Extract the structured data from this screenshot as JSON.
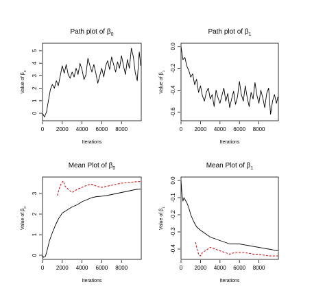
{
  "chart_data": [
    {
      "type": "line",
      "title": "Path plot of β0",
      "title_main": "Path plot of β",
      "title_sub": "0",
      "xlabel": "Iterations",
      "ylabel": "Value of β0",
      "ylabel_main": "Value of β",
      "ylabel_sub": "0",
      "xlim": [
        0,
        10000
      ],
      "ylim": [
        -0.6,
        5.6
      ],
      "xticks": [
        0,
        2000,
        4000,
        6000,
        8000
      ],
      "yticks": [
        0,
        1,
        2,
        3,
        4,
        5
      ],
      "grid": false,
      "series": [
        {
          "color": "#000000",
          "style": "solid",
          "x": [
            0,
            200,
            400,
            600,
            800,
            1000,
            1200,
            1400,
            1600,
            1800,
            2000,
            2200,
            2400,
            2600,
            2800,
            3000,
            3200,
            3400,
            3600,
            3800,
            4000,
            4200,
            4400,
            4600,
            4800,
            5000,
            5200,
            5400,
            5600,
            5800,
            6000,
            6200,
            6400,
            6600,
            6800,
            7000,
            7200,
            7400,
            7600,
            7800,
            8000,
            8200,
            8400,
            8600,
            8800,
            9000,
            9200,
            9400,
            9600,
            9800,
            9950
          ],
          "values": [
            0.0,
            -0.3,
            0.1,
            1.0,
            1.9,
            2.3,
            2.0,
            2.6,
            2.2,
            3.0,
            3.8,
            3.2,
            3.9,
            3.1,
            2.8,
            3.3,
            2.9,
            3.6,
            3.1,
            4.0,
            3.5,
            2.7,
            3.1,
            4.4,
            3.8,
            3.3,
            3.9,
            3.2,
            2.4,
            3.0,
            3.6,
            2.9,
            3.8,
            4.2,
            3.5,
            4.5,
            3.9,
            3.3,
            4.1,
            3.6,
            4.6,
            3.8,
            3.1,
            4.3,
            3.6,
            5.2,
            4.5,
            3.2,
            2.6,
            4.9,
            3.8
          ]
        }
      ]
    },
    {
      "type": "line",
      "title": "Path plot of β1",
      "title_main": "Path plot of β",
      "title_sub": "1",
      "xlabel": "Iterations",
      "ylabel": "Value of β1",
      "ylabel_main": "Value of β",
      "ylabel_sub": "1",
      "xlim": [
        0,
        10000
      ],
      "ylim": [
        -0.68,
        0.03
      ],
      "xticks": [
        0,
        2000,
        4000,
        6000,
        8000
      ],
      "yticks": [
        0.0,
        -0.2,
        -0.4,
        -0.6
      ],
      "ytick_labels": [
        "0.0",
        "-0.2",
        "-0.4",
        "-0.6"
      ],
      "grid": false,
      "series": [
        {
          "color": "#000000",
          "style": "solid",
          "x": [
            0,
            200,
            400,
            600,
            800,
            1000,
            1200,
            1400,
            1600,
            1800,
            2000,
            2200,
            2400,
            2600,
            2800,
            3000,
            3200,
            3400,
            3600,
            3800,
            4000,
            4200,
            4400,
            4600,
            4800,
            5000,
            5200,
            5400,
            5600,
            5800,
            6000,
            6200,
            6400,
            6600,
            6800,
            7000,
            7200,
            7400,
            7600,
            7800,
            8000,
            8200,
            8400,
            8600,
            8800,
            9000,
            9200,
            9400,
            9600,
            9800,
            9950
          ],
          "values": [
            0.0,
            -0.12,
            -0.1,
            -0.18,
            -0.22,
            -0.28,
            -0.25,
            -0.35,
            -0.3,
            -0.42,
            -0.36,
            -0.45,
            -0.5,
            -0.42,
            -0.38,
            -0.48,
            -0.44,
            -0.55,
            -0.4,
            -0.47,
            -0.52,
            -0.45,
            -0.38,
            -0.5,
            -0.43,
            -0.56,
            -0.48,
            -0.41,
            -0.53,
            -0.46,
            -0.32,
            -0.44,
            -0.5,
            -0.36,
            -0.47,
            -0.55,
            -0.42,
            -0.48,
            -0.33,
            -0.45,
            -0.52,
            -0.4,
            -0.47,
            -0.56,
            -0.43,
            -0.38,
            -0.62,
            -0.5,
            -0.44,
            -0.52,
            -0.46
          ]
        }
      ]
    },
    {
      "type": "line",
      "title": "Mean Plot of β0",
      "title_main": "Mean Plot of β",
      "title_sub": "0",
      "xlabel": "Iterations",
      "ylabel": "Value of β0",
      "ylabel_main": "Value of β",
      "ylabel_sub": "0",
      "xlim": [
        0,
        10000
      ],
      "ylim": [
        -0.2,
        3.8
      ],
      "xticks": [
        0,
        2000,
        4000,
        6000,
        8000
      ],
      "yticks": [
        0,
        1,
        2,
        3
      ],
      "grid": false,
      "series": [
        {
          "color": "#000000",
          "style": "solid",
          "x": [
            0,
            100,
            300,
            500,
            700,
            1000,
            1300,
            1600,
            2000,
            2500,
            3000,
            3500,
            4000,
            4500,
            5000,
            5500,
            6000,
            6500,
            7000,
            7500,
            8000,
            8500,
            9000,
            9500,
            9950
          ],
          "values": [
            0.0,
            -0.1,
            -0.05,
            0.3,
            0.7,
            1.1,
            1.45,
            1.75,
            2.05,
            2.2,
            2.35,
            2.45,
            2.6,
            2.7,
            2.8,
            2.85,
            2.87,
            2.9,
            2.95,
            3.0,
            3.05,
            3.1,
            3.15,
            3.2,
            3.22
          ]
        },
        {
          "color": "#d00000",
          "style": "dashed",
          "x": [
            1500,
            1700,
            1900,
            2100,
            2300,
            2600,
            3000,
            3500,
            4000,
            4500,
            5000,
            5500,
            6000,
            6500,
            7000,
            7500,
            8000,
            8500,
            9000,
            9500,
            9950
          ],
          "values": [
            2.9,
            3.25,
            3.5,
            3.6,
            3.35,
            3.2,
            3.05,
            3.2,
            3.3,
            3.4,
            3.45,
            3.35,
            3.3,
            3.35,
            3.4,
            3.45,
            3.5,
            3.52,
            3.55,
            3.57,
            3.58
          ]
        }
      ]
    },
    {
      "type": "line",
      "title": "Mean Plot of β1",
      "title_main": "Mean Plot of β",
      "title_sub": "1",
      "xlabel": "Iterations",
      "ylabel": "Value of β1",
      "ylabel_main": "Value of β",
      "ylabel_sub": "1",
      "xlim": [
        0,
        10000
      ],
      "ylim": [
        -0.46,
        0.02
      ],
      "xticks": [
        0,
        2000,
        4000,
        6000,
        8000
      ],
      "yticks": [
        0.0,
        -0.1,
        -0.2,
        -0.3,
        -0.4
      ],
      "ytick_labels": [
        "0.0",
        "-0.1",
        "-0.2",
        "-0.3",
        "-0.4"
      ],
      "grid": false,
      "series": [
        {
          "color": "#000000",
          "style": "solid",
          "x": [
            0,
            100,
            200,
            300,
            400,
            600,
            800,
            1000,
            1300,
            1600,
            2000,
            2500,
            3000,
            3500,
            4000,
            4500,
            5000,
            5500,
            6000,
            6500,
            7000,
            7500,
            8000,
            8500,
            9000,
            9500,
            9950
          ],
          "values": [
            0.0,
            -0.08,
            -0.12,
            -0.1,
            -0.11,
            -0.13,
            -0.16,
            -0.2,
            -0.24,
            -0.27,
            -0.29,
            -0.31,
            -0.33,
            -0.34,
            -0.35,
            -0.36,
            -0.37,
            -0.37,
            -0.37,
            -0.375,
            -0.38,
            -0.385,
            -0.39,
            -0.395,
            -0.4,
            -0.405,
            -0.41
          ]
        },
        {
          "color": "#d00000",
          "style": "dashed",
          "x": [
            1500,
            1650,
            1800,
            2000,
            2200,
            2500,
            3000,
            3500,
            4000,
            4500,
            5000,
            5500,
            6000,
            6500,
            7000,
            7500,
            8000,
            8500,
            9000,
            9500,
            9950
          ],
          "values": [
            -0.36,
            -0.4,
            -0.43,
            -0.44,
            -0.42,
            -0.41,
            -0.39,
            -0.4,
            -0.41,
            -0.42,
            -0.43,
            -0.42,
            -0.42,
            -0.42,
            -0.425,
            -0.43,
            -0.43,
            -0.435,
            -0.44,
            -0.44,
            -0.44
          ]
        }
      ]
    }
  ]
}
